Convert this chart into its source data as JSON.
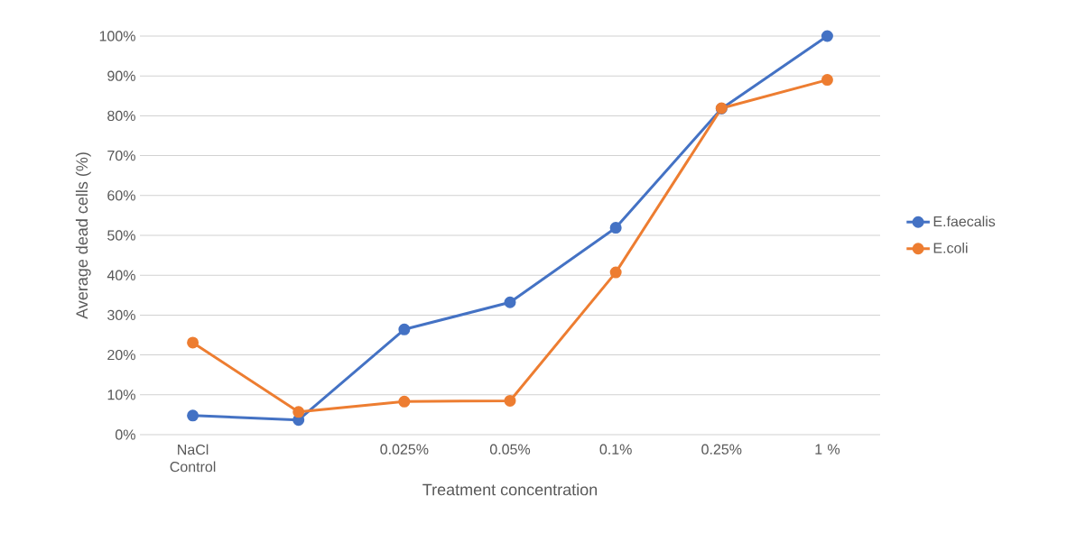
{
  "chart_data": {
    "type": "line",
    "xlabel": "Treatment concentration",
    "ylabel": "Average dead cells (%)",
    "categories": [
      "NaCl Control",
      null,
      "0.025%",
      "0.05%",
      "0.1%",
      "0.25%",
      "1 %"
    ],
    "series": [
      {
        "name": "E.faecalis",
        "color": "#4472c4",
        "values": [
          4.8,
          3.7,
          26.4,
          33.2,
          51.9,
          81.8,
          100
        ]
      },
      {
        "name": "E.coli",
        "color": "#ed7d31",
        "values": [
          23.1,
          5.7,
          8.3,
          8.5,
          40.7,
          81.9,
          89.0
        ]
      }
    ],
    "ylim": [
      0,
      100
    ],
    "yticks": [
      {
        "value": 0,
        "label": "0%"
      },
      {
        "value": 10,
        "label": "10%"
      },
      {
        "value": 20,
        "label": "20%"
      },
      {
        "value": 30,
        "label": "30%"
      },
      {
        "value": 40,
        "label": "40%"
      },
      {
        "value": 50,
        "label": "50%"
      },
      {
        "value": 60,
        "label": "60%"
      },
      {
        "value": 70,
        "label": "70%"
      },
      {
        "value": 80,
        "label": "80%"
      },
      {
        "value": 90,
        "label": "90%"
      },
      {
        "value": 100,
        "label": "100%"
      }
    ],
    "grid": "y",
    "legend": "right",
    "marker": "circle",
    "line_style": "solid"
  }
}
